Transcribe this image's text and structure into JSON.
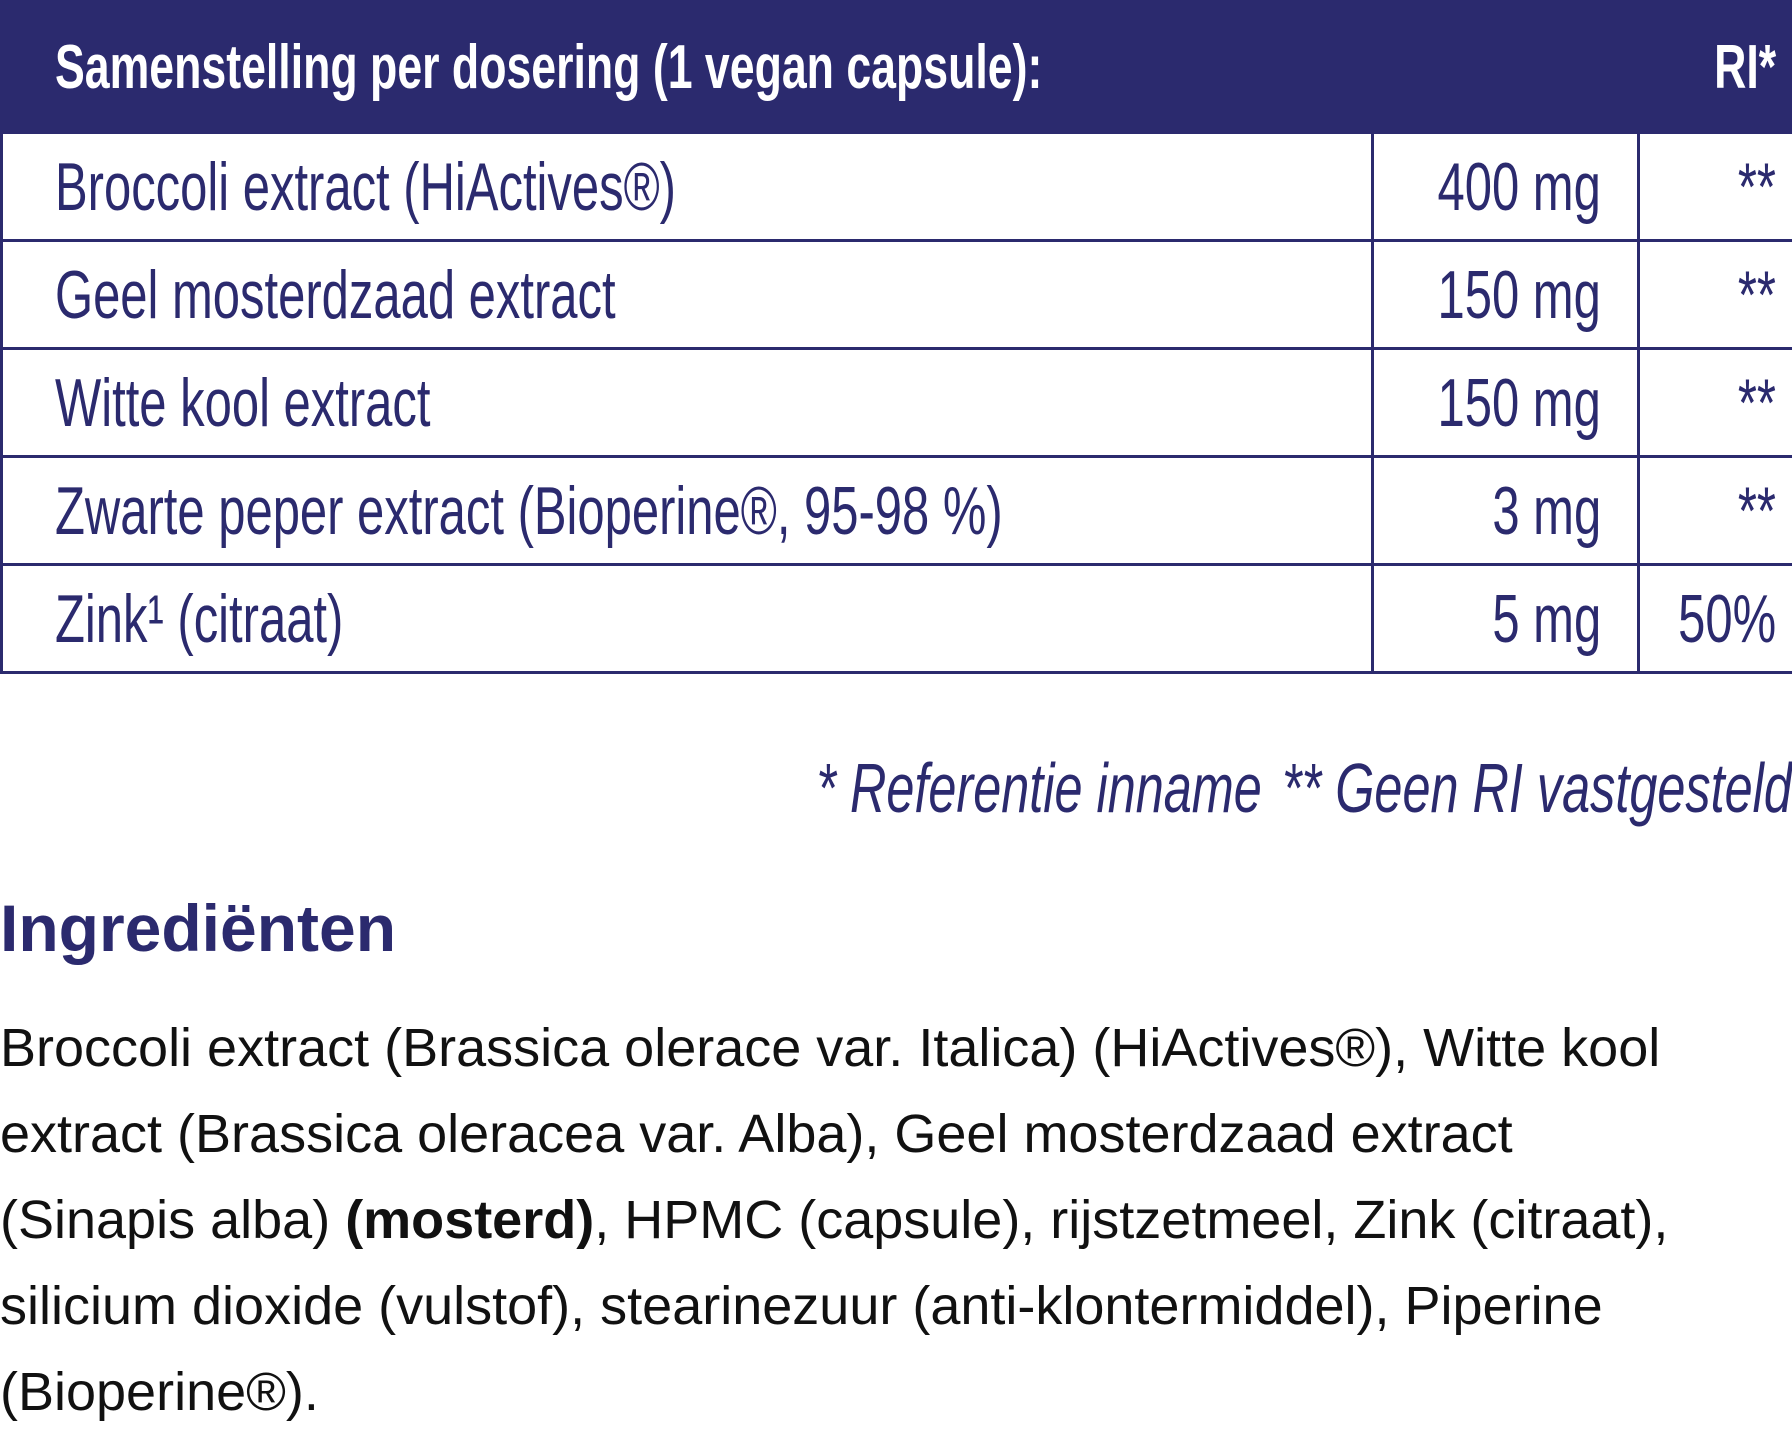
{
  "table": {
    "header": [
      "Samenstelling per dosering (1 vegan capsule):",
      "RI*"
    ],
    "rows": [
      [
        "Broccoli extract (HiActives®)",
        "400 mg",
        "**"
      ],
      [
        "Geel mosterdzaad extract",
        "150 mg",
        "**"
      ],
      [
        "Witte kool extract",
        "150 mg",
        "**"
      ],
      [
        "Zwarte peper extract (Bioperine®, 95-98 %)",
        "3 mg",
        "**"
      ],
      [
        "Zink¹ (citraat)",
        "5 mg",
        "50%"
      ]
    ]
  },
  "footnotes": [
    "* Referentie inname",
    "** Geen RI vastgesteld"
  ],
  "ingredients": {
    "title": "Ingrediënten",
    "text_before": "Broccoli extract (Brassica olerace var. Italica) (HiActives®), Witte kool extract (Brassica oleracea var. Alba), Geel mosterdzaad extract (Sinapis alba) ",
    "text_bold": "(mosterd)",
    "text_after": ", HPMC (capsule), rijstzetmeel, Zink (citraat), silicium dioxide (vulstof), stearinezuur (anti-klontermiddel), Piperine (Bioperine®)."
  }
}
